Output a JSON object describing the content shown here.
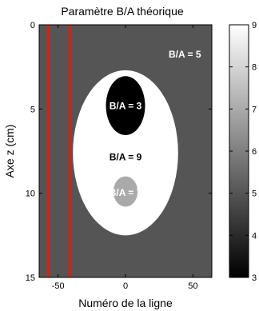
{
  "chart_data": {
    "type": "heatmap",
    "title": "Paramètre B/A théorique",
    "xlabel": "Numéro de la ligne",
    "ylabel": "Axe z (cm)",
    "xlim": [
      -64,
      64
    ],
    "ylim": [
      0,
      15
    ],
    "y_inverted": true,
    "xticks": [
      -50,
      0,
      50
    ],
    "yticks": [
      0,
      5,
      10,
      15
    ],
    "colorbar": {
      "range": [
        3,
        9
      ],
      "ticks": [
        3,
        4,
        5,
        6,
        7,
        8,
        9
      ],
      "colormap": "gray"
    },
    "background_value": 5,
    "regions": [
      {
        "shape": "ellipse",
        "cx": 0,
        "cy": 7.6,
        "rx": 39,
        "ry": 4.9,
        "value": 9,
        "label": "B/A = 9",
        "label_x": 0,
        "label_y": 7.9
      },
      {
        "shape": "ellipse",
        "cx": 0,
        "cy": 4.8,
        "rx": 14.5,
        "ry": 1.75,
        "value": 3,
        "label": "B/A = 3",
        "label_x": 0,
        "label_y": 4.85
      },
      {
        "shape": "ellipse",
        "cx": 0,
        "cy": 9.9,
        "rx": 9,
        "ry": 0.9,
        "value": 7,
        "label": "B/A = 7",
        "label_x": 0,
        "label_y": 10
      }
    ],
    "background_label": {
      "text": "B/A = 5",
      "x": 44,
      "y": 1.8
    },
    "vertical_lines": [
      {
        "x": -57,
        "color": "#e8190f"
      },
      {
        "x": -41,
        "color": "#e8190f"
      }
    ]
  }
}
